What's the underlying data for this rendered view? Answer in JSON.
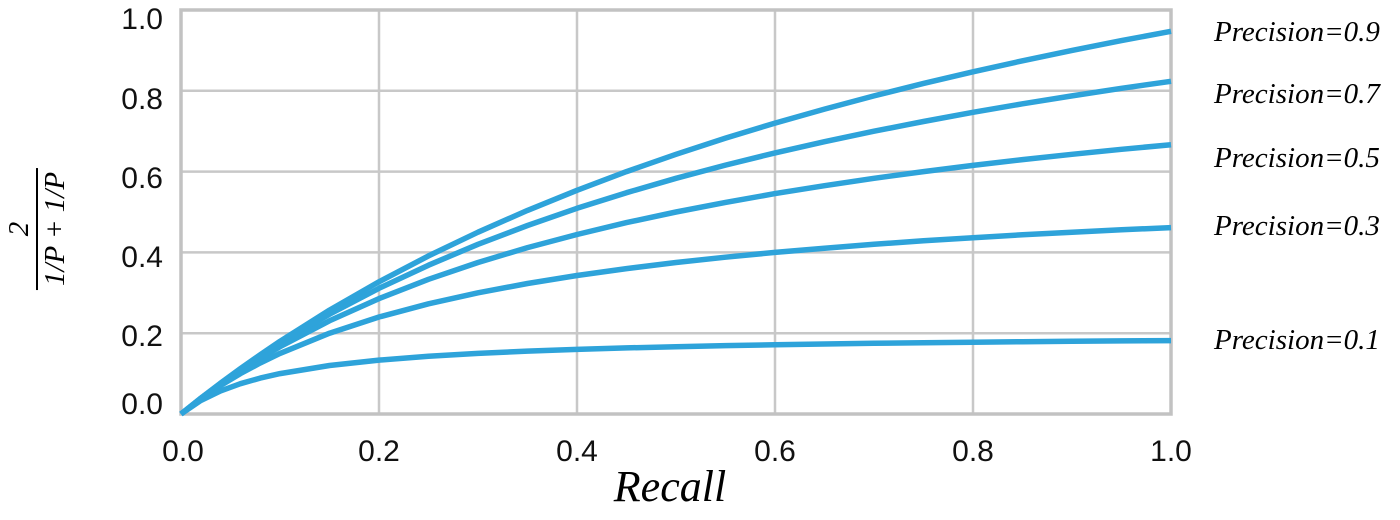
{
  "colors": {
    "curve": "#2EA3DA",
    "grid": "#C8C8C8",
    "frame": "#C2C2C2",
    "text": "#111111"
  },
  "axes": {
    "x_label": "Recall",
    "y_label_numerator": "2",
    "y_label_denominator": "1/P + 1/P",
    "x_ticks": [
      "0.0",
      "0.2",
      "0.4",
      "0.6",
      "0.8",
      "1.0"
    ],
    "y_ticks": [
      "1.0",
      "0.8",
      "0.6",
      "0.4",
      "0.2",
      "0.0"
    ]
  },
  "annotations": [
    {
      "label": "Precision=0.9"
    },
    {
      "label": "Precision=0.7"
    },
    {
      "label": "Precision=0.5"
    },
    {
      "label": "Precision=0.3"
    },
    {
      "label": "Precision=0.1"
    }
  ],
  "chart_data": {
    "type": "line",
    "title": "",
    "xlabel": "Recall",
    "ylabel": "2/(1/P + 1/P)",
    "xlim": [
      0,
      1
    ],
    "ylim": [
      0,
      1
    ],
    "grid": true,
    "legend_position": "right-outside",
    "x": [
      0,
      0.02,
      0.04,
      0.06,
      0.08,
      0.1,
      0.15,
      0.2,
      0.25,
      0.3,
      0.35,
      0.4,
      0.45,
      0.5,
      0.55,
      0.6,
      0.65,
      0.7,
      0.75,
      0.8,
      0.85,
      0.9,
      0.95,
      1.0
    ],
    "series": [
      {
        "name": "Precision=0.9",
        "precision": 0.9,
        "values": [
          0,
          0.0391,
          0.0766,
          0.1125,
          0.1469,
          0.18,
          0.2571,
          0.3273,
          0.3913,
          0.45,
          0.504,
          0.5538,
          0.6,
          0.6429,
          0.6828,
          0.72,
          0.7548,
          0.7875,
          0.8182,
          0.8471,
          0.8743,
          0.9,
          0.9243,
          0.9474
        ]
      },
      {
        "name": "Precision=0.7",
        "precision": 0.7,
        "values": [
          0,
          0.0389,
          0.0757,
          0.1105,
          0.1436,
          0.175,
          0.2471,
          0.3111,
          0.3684,
          0.42,
          0.4667,
          0.5091,
          0.5478,
          0.5833,
          0.616,
          0.6462,
          0.6741,
          0.7,
          0.7241,
          0.7467,
          0.7677,
          0.7875,
          0.8061,
          0.8235
        ]
      },
      {
        "name": "Precision=0.5",
        "precision": 0.5,
        "values": [
          0,
          0.0385,
          0.0741,
          0.1071,
          0.1379,
          0.1667,
          0.2308,
          0.2857,
          0.3333,
          0.375,
          0.4118,
          0.4444,
          0.4737,
          0.5,
          0.5238,
          0.5455,
          0.5652,
          0.5833,
          0.6,
          0.6154,
          0.6296,
          0.6429,
          0.6552,
          0.6667
        ]
      },
      {
        "name": "Precision=0.3",
        "precision": 0.3,
        "values": [
          0,
          0.0375,
          0.0706,
          0.1,
          0.1263,
          0.15,
          0.2,
          0.24,
          0.2727,
          0.3,
          0.3231,
          0.3429,
          0.36,
          0.375,
          0.3882,
          0.4,
          0.4105,
          0.42,
          0.4286,
          0.4364,
          0.4435,
          0.45,
          0.456,
          0.4615
        ]
      },
      {
        "name": "Precision=0.1",
        "precision": 0.1,
        "values": [
          0,
          0.0333,
          0.0571,
          0.075,
          0.0889,
          0.1,
          0.12,
          0.1333,
          0.1429,
          0.15,
          0.1556,
          0.16,
          0.1636,
          0.1667,
          0.1692,
          0.1714,
          0.1733,
          0.175,
          0.1765,
          0.1778,
          0.1789,
          0.18,
          0.181,
          0.1818
        ]
      }
    ]
  }
}
